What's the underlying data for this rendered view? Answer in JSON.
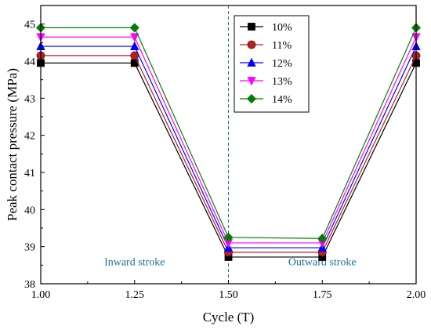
{
  "chart_data": {
    "type": "line",
    "title": "",
    "xlabel": "Cycle (T)",
    "ylabel": "Peak contact pressure (MPa)",
    "x": [
      1.0,
      1.25,
      1.5,
      1.75,
      2.0
    ],
    "x_tick_labels": [
      "1.00",
      "1.25",
      "1.50",
      "1.75",
      "2.00"
    ],
    "y_ticks": [
      38,
      39,
      40,
      41,
      42,
      43,
      44,
      45
    ],
    "xlim": [
      1.0,
      2.0
    ],
    "ylim": [
      38,
      45.5
    ],
    "grid": false,
    "legend_position": "top-right",
    "series": [
      {
        "name": "10%",
        "marker": "square",
        "color": "#000000",
        "values": [
          43.95,
          43.95,
          38.72,
          38.72,
          43.95
        ]
      },
      {
        "name": "11%",
        "marker": "circle",
        "color": "#b22222",
        "values": [
          44.15,
          44.15,
          38.85,
          38.85,
          44.15
        ]
      },
      {
        "name": "12%",
        "marker": "triangle-up",
        "color": "#0000ff",
        "values": [
          44.4,
          44.4,
          38.97,
          38.97,
          44.4
        ]
      },
      {
        "name": "13%",
        "marker": "triangle-down",
        "color": "#ff00ff",
        "values": [
          44.65,
          44.65,
          39.1,
          39.1,
          44.65
        ]
      },
      {
        "name": "14%",
        "marker": "diamond",
        "color": "#008000",
        "values": [
          44.9,
          44.9,
          39.25,
          39.22,
          44.9
        ]
      }
    ],
    "vline": {
      "x": 1.5,
      "color": "#1f6e9e",
      "style": "dashed"
    },
    "annotations": [
      {
        "text": "Inward stroke",
        "x": 1.25,
        "y": 38.5,
        "color": "#1f6e9e"
      },
      {
        "text": "Outward stroke",
        "x": 1.75,
        "y": 38.5,
        "color": "#1f6e9e"
      }
    ]
  }
}
